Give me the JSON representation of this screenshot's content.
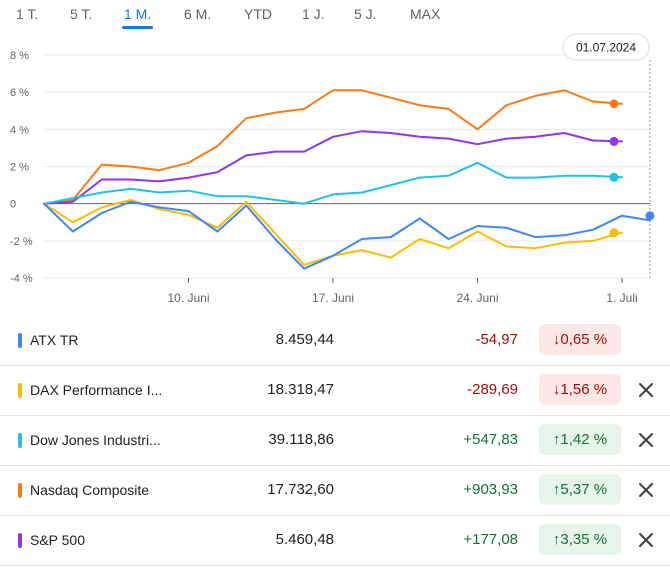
{
  "tabs": [
    {
      "label": "1 T.",
      "active": false
    },
    {
      "label": "5 T.",
      "active": false
    },
    {
      "label": "1 M.",
      "active": true
    },
    {
      "label": "6 M.",
      "active": false
    },
    {
      "label": "YTD",
      "active": false
    },
    {
      "label": "1 J.",
      "active": false
    },
    {
      "label": "5 J.",
      "active": false
    },
    {
      "label": "MAX",
      "active": false
    }
  ],
  "tooltip": {
    "date": "01.07.2024"
  },
  "chart_data": {
    "type": "line",
    "ylim": [
      -4,
      8
    ],
    "y_ticks": [
      "8 %",
      "6 %",
      "4 %",
      "2 %",
      "0",
      "-2 %",
      "-4 %"
    ],
    "x_ticks": [
      "10. Juni",
      "17. Juni",
      "24. Juni",
      "1. Juli"
    ],
    "x_tick_index": [
      5,
      10,
      15,
      20
    ],
    "x_count": 21,
    "gridlines": true,
    "series": [
      {
        "name": "ATX TR",
        "color": "#4285f4",
        "values": [
          0,
          -1.5,
          -0.5,
          0.1,
          -0.2,
          -0.4,
          -1.5,
          -0.1,
          -1.9,
          -3.5,
          -2.8,
          -1.9,
          -1.8,
          -0.8,
          -1.9,
          -1.2,
          -1.3,
          -1.8,
          -1.7,
          -1.4,
          -0.65
        ]
      },
      {
        "name": "DAX Performance I...",
        "color": "#fbbc04",
        "values": [
          0,
          -1.0,
          -0.2,
          0.2,
          -0.3,
          -0.6,
          -1.3,
          0.1,
          -1.6,
          -3.3,
          -2.8,
          -2.5,
          -2.9,
          -1.9,
          -2.4,
          -1.5,
          -2.3,
          -2.4,
          -2.1,
          -2.0,
          -1.56
        ]
      },
      {
        "name": "Dow Jones Industri...",
        "color": "#24c1e0",
        "values": [
          0,
          0.3,
          0.6,
          0.8,
          0.6,
          0.7,
          0.4,
          0.4,
          0.2,
          0.0,
          0.5,
          0.6,
          1.0,
          1.4,
          1.5,
          2.2,
          1.4,
          1.4,
          1.5,
          1.5,
          1.42
        ]
      },
      {
        "name": "Nasdaq Composite",
        "color": "#fa7b17",
        "values": [
          0,
          0.2,
          2.1,
          2.0,
          1.8,
          2.2,
          3.1,
          4.6,
          4.9,
          5.1,
          6.1,
          6.1,
          5.7,
          5.3,
          5.1,
          4.0,
          5.3,
          5.8,
          6.1,
          5.5,
          5.37
        ]
      },
      {
        "name": "S&P 500",
        "color": "#9334e6",
        "values": [
          0,
          0.1,
          1.3,
          1.3,
          1.2,
          1.4,
          1.7,
          2.6,
          2.8,
          2.8,
          3.6,
          3.9,
          3.8,
          3.6,
          3.5,
          3.2,
          3.5,
          3.6,
          3.8,
          3.4,
          3.35
        ]
      }
    ]
  },
  "rows": [
    {
      "name": "ATX TR",
      "price": "8.459,44",
      "change": "-54,97",
      "pct": "0,65 %",
      "arrow": "↓",
      "trend": "neg",
      "color": "#4285f4",
      "removable": false
    },
    {
      "name": "DAX Performance I...",
      "price": "18.318,47",
      "change": "-289,69",
      "pct": "1,56 %",
      "arrow": "↓",
      "trend": "neg",
      "color": "#fbbc04",
      "removable": true
    },
    {
      "name": "Dow Jones Industri...",
      "price": "39.118,86",
      "change": "+547,83",
      "pct": "1,42 %",
      "arrow": "↑",
      "trend": "pos",
      "color": "#24c1e0",
      "removable": true
    },
    {
      "name": "Nasdaq Composite",
      "price": "17.732,60",
      "change": "+903,93",
      "pct": "5,37 %",
      "arrow": "↑",
      "trend": "pos",
      "color": "#fa7b17",
      "removable": true
    },
    {
      "name": "S&P 500",
      "price": "5.460,48",
      "change": "+177,08",
      "pct": "3,35 %",
      "arrow": "↑",
      "trend": "pos",
      "color": "#9334e6",
      "removable": true
    }
  ]
}
